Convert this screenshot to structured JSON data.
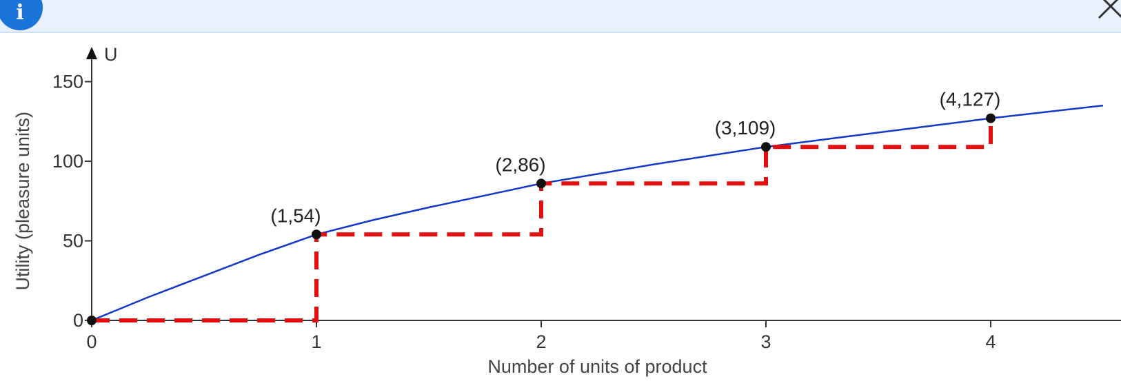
{
  "header": {
    "info_icon": "info-icon",
    "info_glyph": "i",
    "close_icon": "close-icon"
  },
  "chart_data": {
    "type": "line",
    "xlabel": "Number of units of product",
    "ylabel": "Utility (pleasure units)",
    "y_axis_symbol": "U",
    "xlim": [
      0,
      4.5
    ],
    "ylim": [
      0,
      150
    ],
    "x_ticks": [
      0,
      1,
      2,
      3,
      4
    ],
    "x_tick_labels": [
      "0",
      "1",
      "2",
      "3",
      "4"
    ],
    "y_ticks": [
      0,
      50,
      100,
      150
    ],
    "y_tick_labels": [
      "0",
      "50",
      "100",
      "150"
    ],
    "series": [
      {
        "kind": "curve",
        "color": "#1338c8",
        "x": [
          0,
          0.25,
          0.5,
          0.75,
          1,
          1.25,
          1.5,
          1.75,
          2,
          2.25,
          2.5,
          2.75,
          3,
          3.25,
          3.5,
          3.75,
          4,
          4.25,
          4.5
        ],
        "y": [
          0,
          14.5,
          28,
          41.5,
          54,
          63,
          71,
          78.5,
          86,
          92,
          98,
          103.5,
          109,
          113.5,
          118,
          122.5,
          127,
          131,
          135
        ]
      },
      {
        "kind": "step-dashed",
        "color": "#e01010",
        "x": [
          0,
          1,
          1,
          2,
          2,
          3,
          3,
          4,
          4
        ],
        "y": [
          0,
          0,
          54,
          54,
          86,
          86,
          109,
          109,
          127
        ]
      }
    ],
    "points": [
      {
        "x": 0,
        "y": 0,
        "label": ""
      },
      {
        "x": 1,
        "y": 54,
        "label": "(1,54)"
      },
      {
        "x": 2,
        "y": 86,
        "label": "(2,86)"
      },
      {
        "x": 3,
        "y": 109,
        "label": "(3,109)"
      },
      {
        "x": 4,
        "y": 127,
        "label": "(4,127)"
      }
    ],
    "grid": false
  }
}
